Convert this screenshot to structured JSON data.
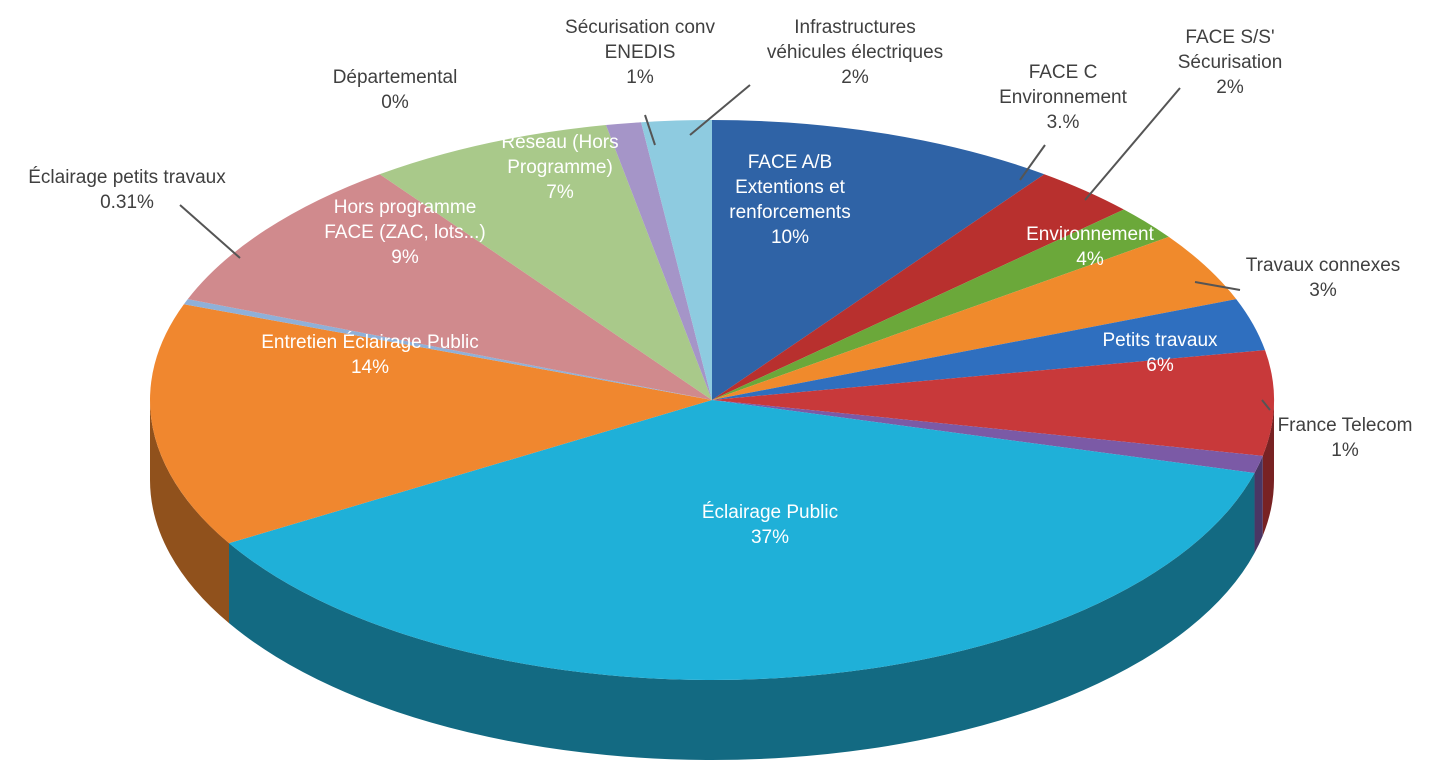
{
  "chart_data": {
    "type": "pie3d",
    "categories": [
      "FACE A/B Extentions et renforcements",
      "FACE C Environnement",
      "FACE S/S' Sécurisation",
      "Environnement",
      "Travaux connexes",
      "Petits travaux",
      "France Telecom",
      "Éclairage Public",
      "Entretien Éclairage Public",
      "Éclairage petits travaux",
      "Hors programme FACE (ZAC, lots...)",
      "Réseau (Hors Programme)",
      "Départemental",
      "Sécurisation conv ENEDIS",
      "Infrastructures véhicules électriques"
    ],
    "values": [
      10,
      3,
      2,
      4,
      3,
      6,
      1,
      37,
      14,
      0.31,
      9,
      7,
      0,
      1,
      2
    ],
    "value_labels": [
      "10%",
      "3.%",
      "2%",
      "4%",
      "3%",
      "6%",
      "1%",
      "37%",
      "14%",
      "0.31%",
      "9%",
      "7%",
      "0%",
      "1%",
      "2%"
    ],
    "colors": [
      "#2f63a6",
      "#b8302e",
      "#6ba83a",
      "#f08a2c",
      "#2f6fbf",
      "#c8393a",
      "#7b5aa6",
      "#1fb0d8",
      "#f0872f",
      "#8fb0d8",
      "#d08a8d",
      "#a9c98a",
      "#d08a8d",
      "#a595c8",
      "#8ecbe0"
    ]
  }
}
